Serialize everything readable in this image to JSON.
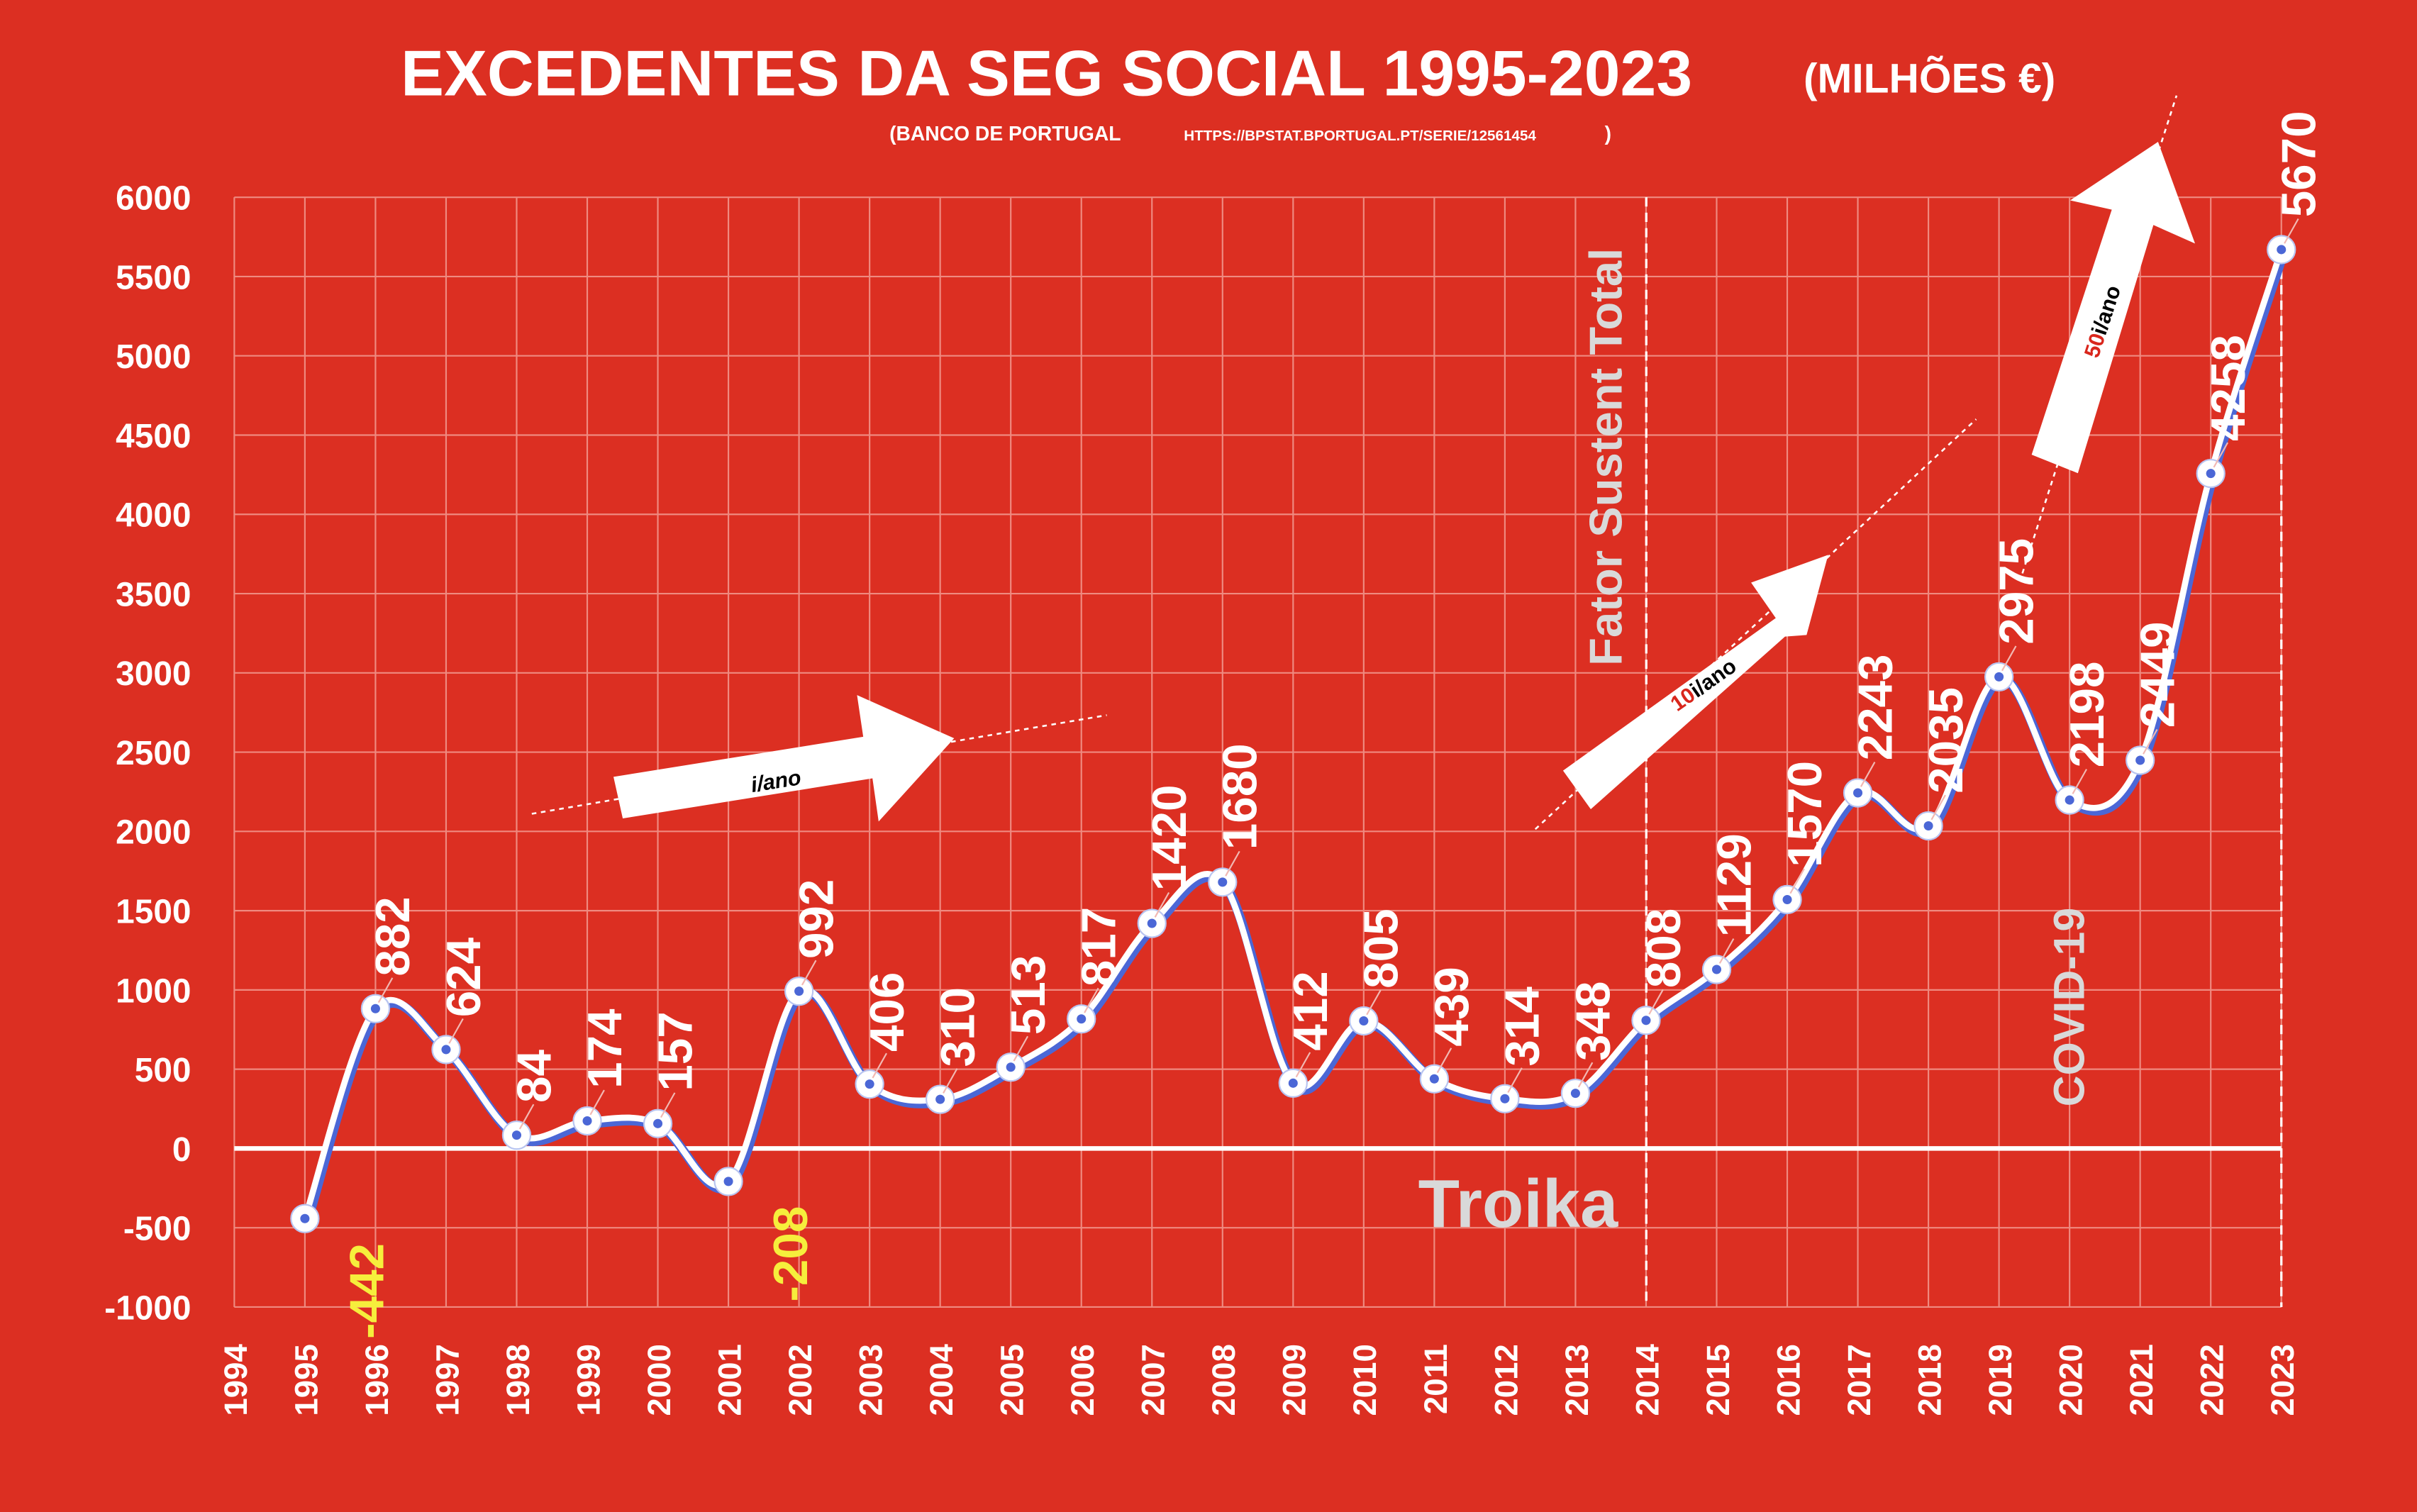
{
  "colors": {
    "background": "#dc2f22",
    "grid": "#ef8a80",
    "line": "#ffffff",
    "line_shadow": "#4b67d6",
    "negative_label": "#f6ee3c",
    "annotation_gray": "#d9d9d9"
  },
  "title": {
    "main": "EXCEDENTES DA SEG SOCIAL 1995-2023",
    "unit": "(MILHÕES €)",
    "source_prefix": "(BANCO DE PORTUGAL",
    "source_url": "HTTPS://BPSTAT.BPORTUGAL.PT/SERIE/12561454",
    "source_suffix": ")"
  },
  "chart_data": {
    "type": "line",
    "title": "EXCEDENTES DA SEG SOCIAL 1995-2023",
    "subtitle": "(MILHÕES €)",
    "xlabel": "",
    "ylabel": "",
    "x_range": [
      1994,
      2023
    ],
    "ylim": [
      -1000,
      6000
    ],
    "y_ticks": [
      -1000,
      -500,
      0,
      500,
      1000,
      1500,
      2000,
      2500,
      3000,
      3500,
      4000,
      4500,
      5000,
      5500,
      6000
    ],
    "x_ticks": [
      "1994",
      "1995",
      "1996",
      "1997",
      "1998",
      "1999",
      "2000",
      "2001",
      "2002",
      "2003",
      "2004",
      "2005",
      "2006",
      "2007",
      "2008",
      "2009",
      "2010",
      "2011",
      "2012",
      "2013",
      "2014",
      "2015",
      "2016",
      "2017",
      "2018",
      "2019",
      "2020",
      "2021",
      "2022",
      "2023"
    ],
    "grid": true,
    "legend": "none",
    "series": [
      {
        "x": [
          1995,
          1996,
          1997,
          1998,
          1999,
          2000,
          2001,
          2002,
          2003,
          2004,
          2005,
          2006,
          2007,
          2008,
          2009,
          2010,
          2011,
          2012,
          2013,
          2014,
          2015,
          2016,
          2017,
          2018,
          2019,
          2020,
          2021,
          2022,
          2023
        ],
        "values": [
          -442,
          882,
          624,
          84,
          174,
          157,
          -208,
          992,
          406,
          310,
          513,
          817,
          1420,
          1680,
          412,
          805,
          439,
          314,
          348,
          808,
          1129,
          1570,
          2243,
          2035,
          2975,
          2198,
          2449,
          4258,
          5670
        ],
        "labels": [
          "-442",
          "882",
          "624",
          "84",
          "174",
          "157",
          "-208",
          "992",
          "406",
          "310",
          "513",
          "817",
          "1420",
          "1680",
          "412",
          "805",
          "439",
          "314",
          "348",
          "808",
          "1129",
          "1570",
          "2243",
          "2035",
          "2975",
          "2198",
          "2449",
          "4258",
          "5670"
        ]
      }
    ],
    "annotations": {
      "troika": "Troika",
      "fator": "Fator Sustent Total",
      "covid": "COVID-19",
      "arrow1": "i/ano",
      "arrow2_num": "10",
      "arrow2_rest": "i/ano",
      "arrow3_num": "50",
      "arrow3_rest": "i/ano"
    }
  }
}
